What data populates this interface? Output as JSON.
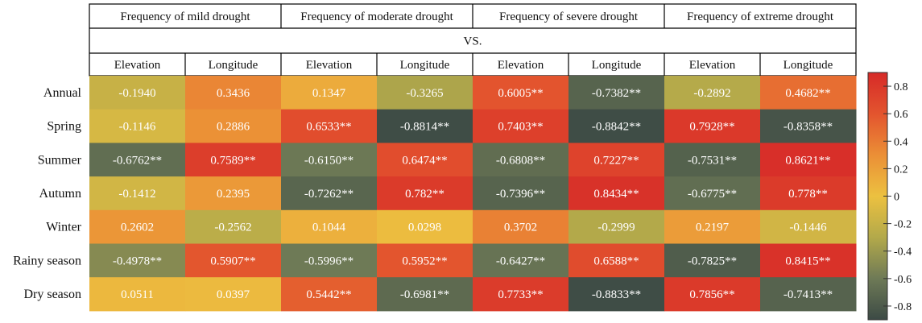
{
  "chart_data": {
    "type": "heatmap",
    "header_groups": [
      "Frequency of mild drought",
      "Frequency of moderate drought",
      "Frequency of severe drought",
      "Frequency of extreme drought"
    ],
    "header_vs": "VS.",
    "columns": [
      "Elevation",
      "Longitude",
      "Elevation",
      "Longitude",
      "Elevation",
      "Longitude",
      "Elevation",
      "Longitude"
    ],
    "rows": [
      "Annual",
      "Spring",
      "Summer",
      "Autumn",
      "Winter",
      "Rainy season",
      "Dry season"
    ],
    "values": [
      [
        -0.194,
        0.3436,
        0.1347,
        -0.3265,
        0.6005,
        -0.7382,
        -0.2892,
        0.4682
      ],
      [
        -0.1146,
        0.2886,
        0.6533,
        -0.8814,
        0.7403,
        -0.8842,
        0.7928,
        -0.8358
      ],
      [
        -0.6762,
        0.7589,
        -0.615,
        0.6474,
        -0.6808,
        0.7227,
        -0.7531,
        0.8621
      ],
      [
        -0.1412,
        0.2395,
        -0.7262,
        0.782,
        -0.7396,
        0.8434,
        -0.6775,
        0.778
      ],
      [
        0.2602,
        -0.2562,
        0.1044,
        0.0298,
        0.3702,
        -0.2999,
        0.2197,
        -0.1446
      ],
      [
        -0.4978,
        0.5907,
        -0.5996,
        0.5952,
        -0.6427,
        0.6588,
        -0.7825,
        0.8415
      ],
      [
        0.0511,
        0.0397,
        0.5442,
        -0.6981,
        0.7733,
        -0.8833,
        0.7856,
        -0.7413
      ]
    ],
    "labels": [
      [
        "-0.1940",
        "0.3436",
        "0.1347",
        "-0.3265",
        "0.6005**",
        "-0.7382**",
        "-0.2892",
        "0.4682**"
      ],
      [
        "-0.1146",
        "0.2886",
        "0.6533**",
        "-0.8814**",
        "0.7403**",
        "-0.8842**",
        "0.7928**",
        "-0.8358**"
      ],
      [
        "-0.6762**",
        "0.7589**",
        "-0.6150**",
        "0.6474**",
        "-0.6808**",
        "0.7227**",
        "-0.7531**",
        "0.8621**"
      ],
      [
        "-0.1412",
        "0.2395",
        "-0.7262**",
        "0.782**",
        "-0.7396**",
        "0.8434**",
        "-0.6775**",
        "0.778**"
      ],
      [
        "0.2602",
        "-0.2562",
        "0.1044",
        "0.0298",
        "0.3702",
        "-0.2999",
        "0.2197",
        "-0.1446"
      ],
      [
        "-0.4978**",
        "0.5907**",
        "-0.5996**",
        "0.5952**",
        "-0.6427**",
        "0.6588**",
        "-0.7825**",
        "0.8415**"
      ],
      [
        "0.0511",
        "0.0397",
        "0.5442**",
        "-0.6981**",
        "0.7733**",
        "-0.8833**",
        "0.7856**",
        "-0.7413**"
      ]
    ],
    "colorbar": {
      "range": [
        -0.9,
        0.9
      ],
      "ticks": [
        0.8,
        0.6,
        0.4,
        0.2,
        0,
        -0.2,
        -0.4,
        -0.6,
        -0.8
      ],
      "tick_labels": [
        "0.8",
        "0.6",
        "0.4",
        "0.2",
        "0",
        "-0.2",
        "-0.4",
        "-0.6",
        "-0.8"
      ],
      "colors": {
        "max": "#d62a28",
        "high": "#e3542e",
        "mid_high": "#eb8f36",
        "zero": "#ecc140",
        "mid_low": "#b3a94a",
        "low": "#6e7a56",
        "min": "#3c4a45"
      }
    }
  }
}
